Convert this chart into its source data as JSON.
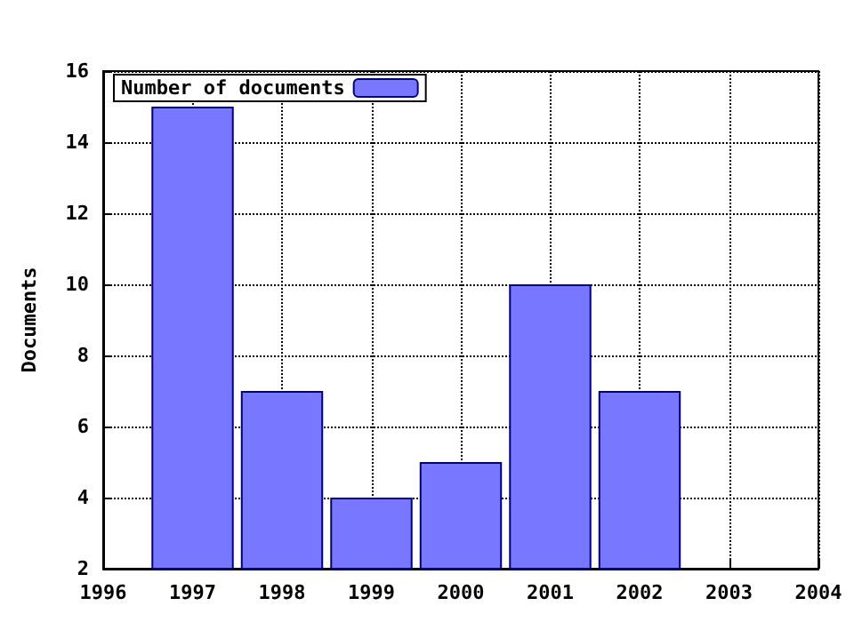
{
  "chart_data": {
    "type": "bar",
    "ylabel": "Documents",
    "x": [
      1997,
      1998,
      1999,
      2000,
      2001,
      2002
    ],
    "series": [
      {
        "name": "Number of documents",
        "color": "#7777ff",
        "values": [
          15,
          7,
          4,
          5,
          10,
          7
        ]
      }
    ],
    "xlim": [
      1996,
      2004
    ],
    "xticks": [
      1996,
      1997,
      1998,
      1999,
      2000,
      2001,
      2002,
      2003,
      2004
    ],
    "ylim": [
      2,
      16
    ],
    "yticks": [
      2,
      4,
      6,
      8,
      10,
      12,
      14,
      16
    ],
    "grid": true,
    "line_style": "dotted",
    "legend": "top left"
  }
}
